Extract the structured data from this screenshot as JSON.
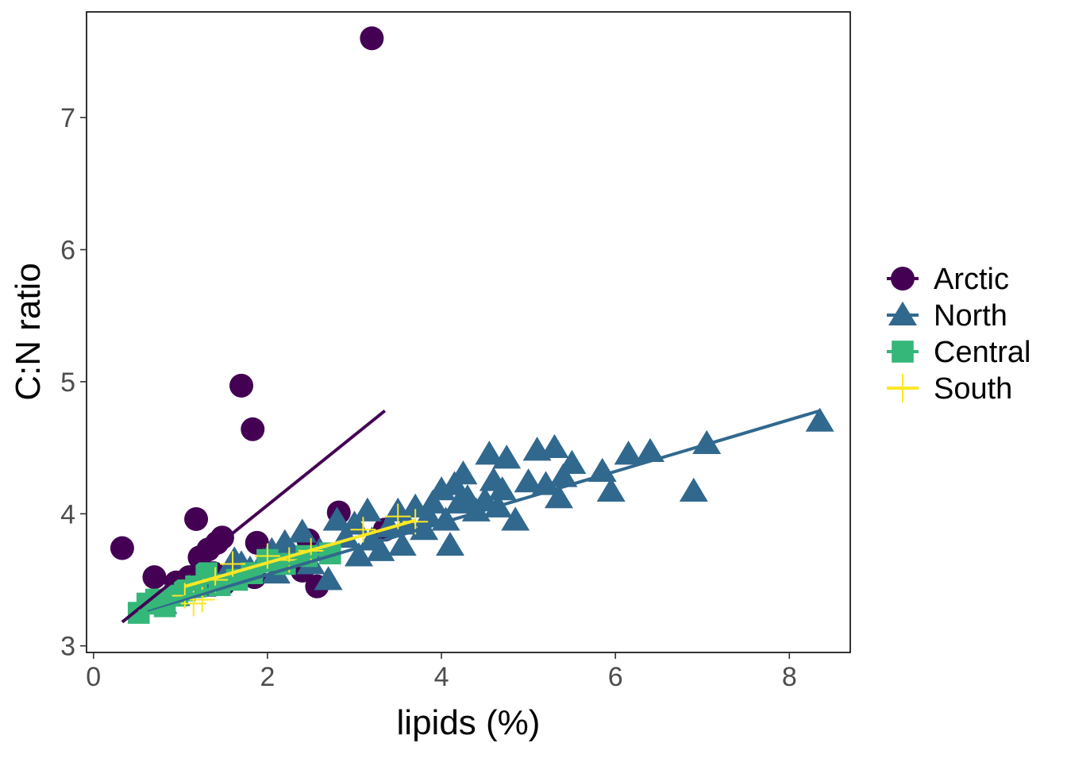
{
  "chart_data": {
    "type": "scatter",
    "xlabel": "lipids (%)",
    "ylabel": "C:N ratio",
    "xlim": [
      -0.08,
      8.7
    ],
    "ylim": [
      2.95,
      7.8
    ],
    "x_ticks": [
      0,
      2,
      4,
      6,
      8
    ],
    "y_ticks": [
      3,
      4,
      5,
      6,
      7
    ],
    "grid": false,
    "legend_position": "right",
    "series": [
      {
        "name": "Arctic",
        "color": "#440154",
        "marker": "circle",
        "points": [
          [
            0.33,
            3.74
          ],
          [
            0.7,
            3.52
          ],
          [
            0.95,
            3.48
          ],
          [
            1.1,
            3.52
          ],
          [
            1.18,
            3.96
          ],
          [
            1.22,
            3.67
          ],
          [
            1.28,
            3.48
          ],
          [
            1.32,
            3.73
          ],
          [
            1.38,
            3.55
          ],
          [
            1.42,
            3.78
          ],
          [
            1.48,
            3.82
          ],
          [
            1.5,
            3.47
          ],
          [
            1.7,
            4.97
          ],
          [
            1.83,
            4.64
          ],
          [
            1.85,
            3.52
          ],
          [
            1.88,
            3.78
          ],
          [
            2.4,
            3.57
          ],
          [
            2.47,
            3.8
          ],
          [
            2.57,
            3.45
          ],
          [
            2.82,
            4.01
          ],
          [
            3.2,
            7.6
          ],
          [
            3.35,
            3.88
          ]
        ],
        "trend": [
          [
            0.33,
            3.18
          ],
          [
            3.35,
            4.78
          ]
        ]
      },
      {
        "name": "North",
        "color": "#31688e",
        "marker": "triangle",
        "points": [
          [
            0.8,
            3.32
          ],
          [
            0.95,
            3.38
          ],
          [
            1.1,
            3.44
          ],
          [
            1.25,
            3.45
          ],
          [
            1.35,
            3.5
          ],
          [
            1.5,
            3.52
          ],
          [
            1.62,
            3.65
          ],
          [
            1.7,
            3.62
          ],
          [
            1.8,
            3.58
          ],
          [
            1.95,
            3.64
          ],
          [
            2.05,
            3.72
          ],
          [
            2.1,
            3.55
          ],
          [
            2.2,
            3.78
          ],
          [
            2.3,
            3.68
          ],
          [
            2.4,
            3.86
          ],
          [
            2.5,
            3.62
          ],
          [
            2.6,
            3.72
          ],
          [
            2.7,
            3.5
          ],
          [
            2.8,
            3.95
          ],
          [
            2.9,
            3.82
          ],
          [
            3.0,
            3.92
          ],
          [
            3.05,
            3.68
          ],
          [
            3.15,
            4.02
          ],
          [
            3.2,
            3.8
          ],
          [
            3.3,
            3.72
          ],
          [
            3.4,
            3.9
          ],
          [
            3.5,
            4.02
          ],
          [
            3.55,
            3.76
          ],
          [
            3.6,
            3.92
          ],
          [
            3.7,
            4.05
          ],
          [
            3.8,
            3.88
          ],
          [
            3.85,
            3.98
          ],
          [
            3.9,
            4.08
          ],
          [
            4.0,
            4.18
          ],
          [
            4.05,
            3.95
          ],
          [
            4.1,
            3.76
          ],
          [
            4.15,
            4.22
          ],
          [
            4.2,
            4.08
          ],
          [
            4.25,
            4.3
          ],
          [
            4.3,
            4.12
          ],
          [
            4.4,
            4.02
          ],
          [
            4.5,
            4.1
          ],
          [
            4.55,
            4.45
          ],
          [
            4.6,
            4.25
          ],
          [
            4.65,
            4.05
          ],
          [
            4.7,
            4.18
          ],
          [
            4.75,
            4.42
          ],
          [
            4.85,
            3.95
          ],
          [
            5.0,
            4.24
          ],
          [
            5.1,
            4.48
          ],
          [
            5.2,
            4.22
          ],
          [
            5.3,
            4.5
          ],
          [
            5.35,
            4.12
          ],
          [
            5.4,
            4.28
          ],
          [
            5.5,
            4.38
          ],
          [
            5.85,
            4.32
          ],
          [
            5.95,
            4.17
          ],
          [
            6.15,
            4.45
          ],
          [
            6.4,
            4.47
          ],
          [
            6.9,
            4.17
          ],
          [
            7.05,
            4.53
          ],
          [
            8.35,
            4.7
          ]
        ],
        "trend": [
          [
            0.62,
            3.27
          ],
          [
            8.35,
            4.78
          ]
        ]
      },
      {
        "name": "Central",
        "color": "#35b779",
        "marker": "square",
        "points": [
          [
            0.52,
            3.25
          ],
          [
            0.62,
            3.32
          ],
          [
            0.72,
            3.35
          ],
          [
            0.82,
            3.3
          ],
          [
            0.95,
            3.38
          ],
          [
            1.05,
            3.42
          ],
          [
            1.18,
            3.45
          ],
          [
            1.3,
            3.55
          ],
          [
            1.45,
            3.46
          ],
          [
            1.65,
            3.5
          ],
          [
            1.82,
            3.55
          ],
          [
            2.0,
            3.65
          ],
          [
            2.2,
            3.62
          ],
          [
            2.45,
            3.68
          ],
          [
            2.72,
            3.7
          ]
        ],
        "trend": [
          [
            0.52,
            3.26
          ],
          [
            2.72,
            3.72
          ]
        ]
      },
      {
        "name": "South",
        "color": "#fde725",
        "marker": "cross",
        "points": [
          [
            1.05,
            3.38
          ],
          [
            1.15,
            3.32
          ],
          [
            1.25,
            3.35
          ],
          [
            1.4,
            3.5
          ],
          [
            1.6,
            3.62
          ],
          [
            2.0,
            3.68
          ],
          [
            2.25,
            3.65
          ],
          [
            2.5,
            3.72
          ],
          [
            3.1,
            3.88
          ],
          [
            3.5,
            3.98
          ],
          [
            3.7,
            3.94
          ]
        ],
        "trend": [
          [
            1.05,
            3.45
          ],
          [
            3.7,
            3.95
          ]
        ]
      }
    ]
  }
}
